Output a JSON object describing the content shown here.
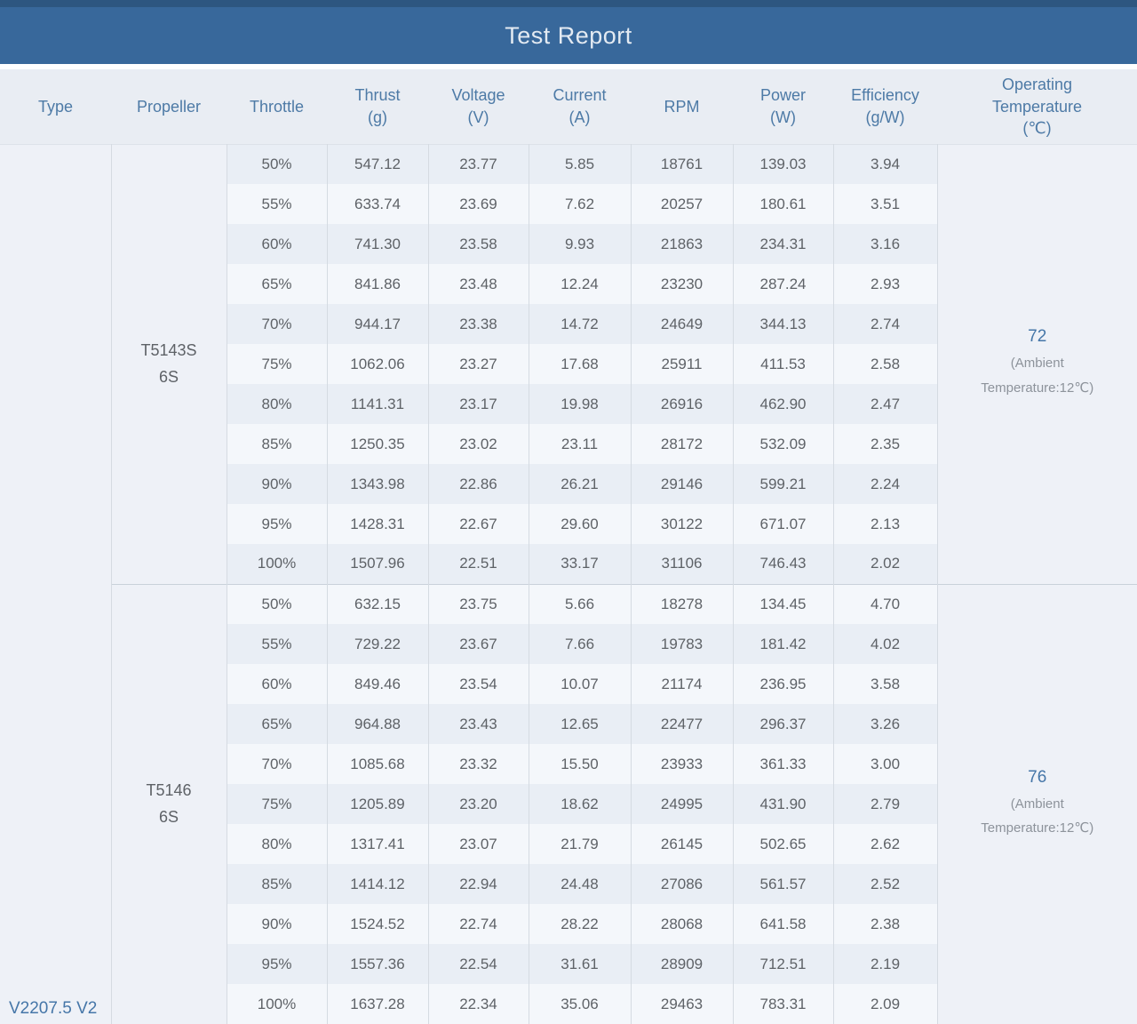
{
  "title": "Test Report",
  "type_value": "V2207.5 V2",
  "columns": [
    {
      "label": "Type",
      "unit": ""
    },
    {
      "label": "Propeller",
      "unit": ""
    },
    {
      "label": "Throttle",
      "unit": ""
    },
    {
      "label": "Thrust",
      "unit": "(g)"
    },
    {
      "label": "Voltage",
      "unit": "(V)"
    },
    {
      "label": "Current",
      "unit": "(A)"
    },
    {
      "label": "RPM",
      "unit": ""
    },
    {
      "label": "Power",
      "unit": "(W)"
    },
    {
      "label": "Efficiency",
      "unit": "(g/W)"
    },
    {
      "label": "Operating Temperature",
      "unit": "(℃)"
    }
  ],
  "sections": [
    {
      "propeller": "T5143S",
      "battery": "6S",
      "temperature": "72",
      "ambient_note": "(Ambient Temperature:12℃)",
      "rows": [
        {
          "throttle": "50%",
          "thrust": "547.12",
          "voltage": "23.77",
          "current": "5.85",
          "rpm": "18761",
          "power": "139.03",
          "efficiency": "3.94"
        },
        {
          "throttle": "55%",
          "thrust": "633.74",
          "voltage": "23.69",
          "current": "7.62",
          "rpm": "20257",
          "power": "180.61",
          "efficiency": "3.51"
        },
        {
          "throttle": "60%",
          "thrust": "741.30",
          "voltage": "23.58",
          "current": "9.93",
          "rpm": "21863",
          "power": "234.31",
          "efficiency": "3.16"
        },
        {
          "throttle": "65%",
          "thrust": "841.86",
          "voltage": "23.48",
          "current": "12.24",
          "rpm": "23230",
          "power": "287.24",
          "efficiency": "2.93"
        },
        {
          "throttle": "70%",
          "thrust": "944.17",
          "voltage": "23.38",
          "current": "14.72",
          "rpm": "24649",
          "power": "344.13",
          "efficiency": "2.74"
        },
        {
          "throttle": "75%",
          "thrust": "1062.06",
          "voltage": "23.27",
          "current": "17.68",
          "rpm": "25911",
          "power": "411.53",
          "efficiency": "2.58"
        },
        {
          "throttle": "80%",
          "thrust": "1141.31",
          "voltage": "23.17",
          "current": "19.98",
          "rpm": "26916",
          "power": "462.90",
          "efficiency": "2.47"
        },
        {
          "throttle": "85%",
          "thrust": "1250.35",
          "voltage": "23.02",
          "current": "23.11",
          "rpm": "28172",
          "power": "532.09",
          "efficiency": "2.35"
        },
        {
          "throttle": "90%",
          "thrust": "1343.98",
          "voltage": "22.86",
          "current": "26.21",
          "rpm": "29146",
          "power": "599.21",
          "efficiency": "2.24"
        },
        {
          "throttle": "95%",
          "thrust": "1428.31",
          "voltage": "22.67",
          "current": "29.60",
          "rpm": "30122",
          "power": "671.07",
          "efficiency": "2.13"
        },
        {
          "throttle": "100%",
          "thrust": "1507.96",
          "voltage": "22.51",
          "current": "33.17",
          "rpm": "31106",
          "power": "746.43",
          "efficiency": "2.02"
        }
      ]
    },
    {
      "propeller": "T5146",
      "battery": "6S",
      "temperature": "76",
      "ambient_note": "(Ambient Temperature:12℃)",
      "rows": [
        {
          "throttle": "50%",
          "thrust": "632.15",
          "voltage": "23.75",
          "current": "5.66",
          "rpm": "18278",
          "power": "134.45",
          "efficiency": "4.70"
        },
        {
          "throttle": "55%",
          "thrust": "729.22",
          "voltage": "23.67",
          "current": "7.66",
          "rpm": "19783",
          "power": "181.42",
          "efficiency": "4.02"
        },
        {
          "throttle": "60%",
          "thrust": "849.46",
          "voltage": "23.54",
          "current": "10.07",
          "rpm": "21174",
          "power": "236.95",
          "efficiency": "3.58"
        },
        {
          "throttle": "65%",
          "thrust": "964.88",
          "voltage": "23.43",
          "current": "12.65",
          "rpm": "22477",
          "power": "296.37",
          "efficiency": "3.26"
        },
        {
          "throttle": "70%",
          "thrust": "1085.68",
          "voltage": "23.32",
          "current": "15.50",
          "rpm": "23933",
          "power": "361.33",
          "efficiency": "3.00"
        },
        {
          "throttle": "75%",
          "thrust": "1205.89",
          "voltage": "23.20",
          "current": "18.62",
          "rpm": "24995",
          "power": "431.90",
          "efficiency": "2.79"
        },
        {
          "throttle": "80%",
          "thrust": "1317.41",
          "voltage": "23.07",
          "current": "21.79",
          "rpm": "26145",
          "power": "502.65",
          "efficiency": "2.62"
        },
        {
          "throttle": "85%",
          "thrust": "1414.12",
          "voltage": "22.94",
          "current": "24.48",
          "rpm": "27086",
          "power": "561.57",
          "efficiency": "2.52"
        },
        {
          "throttle": "90%",
          "thrust": "1524.52",
          "voltage": "22.74",
          "current": "28.22",
          "rpm": "28068",
          "power": "641.58",
          "efficiency": "2.38"
        },
        {
          "throttle": "95%",
          "thrust": "1557.36",
          "voltage": "22.54",
          "current": "31.61",
          "rpm": "28909",
          "power": "712.51",
          "efficiency": "2.19"
        },
        {
          "throttle": "100%",
          "thrust": "1637.28",
          "voltage": "22.34",
          "current": "35.06",
          "rpm": "29463",
          "power": "783.31",
          "efficiency": "2.09"
        }
      ]
    }
  ],
  "colors": {
    "title_bar": "#38689b",
    "title_bar_top_edge": "#2d5680",
    "header_text": "#4d7aa6",
    "data_text": "#5e6267",
    "accent_blue_text": "#4576a8",
    "row_stripe_dark": "#e9eef5",
    "row_stripe_light": "#f4f7fb",
    "merged_cell_bg": "#eef1f7"
  }
}
